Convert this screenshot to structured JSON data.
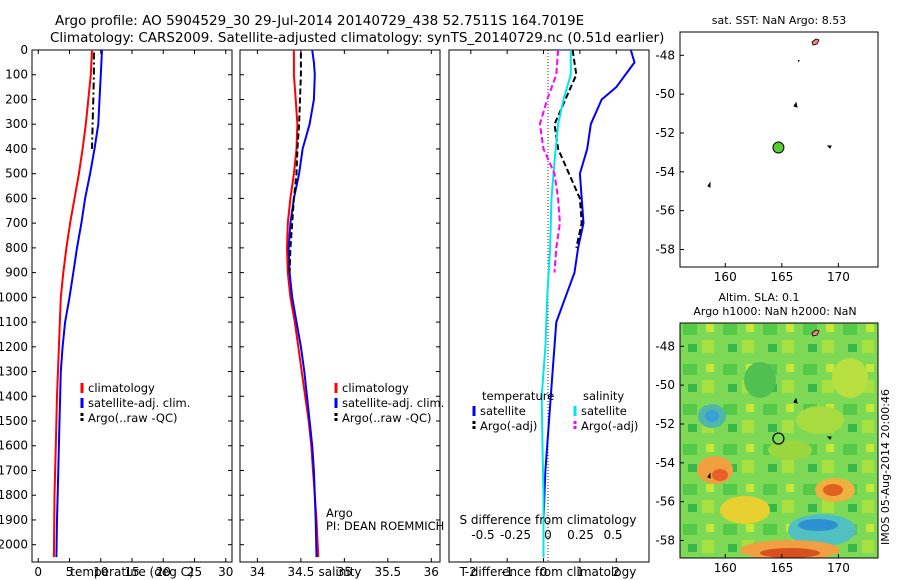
{
  "title_line1": "Argo profile: AO 5904529_30 29-Jul-2014 20140729_438 52.7511S 164.7019E",
  "title_line2": "Climatology: CARS2009. Satellite-adjusted climatology: synTS_20140729.nc (0.51d earlier)",
  "colors": {
    "climatology": "#ff0000",
    "satellite": "#0000ff",
    "argo": "#000000",
    "sat_temp": "#00e5ee",
    "argo_salt": "#ff00ff",
    "map_dot": "#55cc33"
  },
  "chart_data": [
    {
      "type": "line",
      "name": "temperature",
      "xlabel": "temperature (deg C)",
      "xlim": [
        -1,
        31
      ],
      "ylim": [
        2070,
        0
      ],
      "xticks": [
        "0",
        "5",
        "10",
        "15",
        "20",
        "25",
        "30"
      ],
      "xtick_values": [
        0,
        5,
        10,
        15,
        20,
        25,
        30
      ],
      "yticks": [
        "0",
        "100",
        "200",
        "300",
        "400",
        "500",
        "600",
        "700",
        "800",
        "900",
        "1000",
        "1100",
        "1200",
        "1300",
        "1400",
        "1500",
        "1600",
        "1700",
        "1800",
        "1900",
        "2000"
      ],
      "ytick_values": [
        0,
        100,
        200,
        300,
        400,
        500,
        600,
        700,
        800,
        900,
        1000,
        1100,
        1200,
        1300,
        1400,
        1500,
        1600,
        1700,
        1800,
        1900,
        2000
      ],
      "legend": [
        "climatology",
        "satellite-adj. clim.",
        "Argo(..raw -QC)"
      ],
      "series": [
        {
          "name": "climatology",
          "color": "#ff0000",
          "style": "solid",
          "points": [
            [
              8.6,
              0
            ],
            [
              8.4,
              100
            ],
            [
              8.0,
              200
            ],
            [
              7.6,
              300
            ],
            [
              7.1,
              400
            ],
            [
              6.5,
              500
            ],
            [
              5.8,
              600
            ],
            [
              5.1,
              700
            ],
            [
              4.5,
              800
            ],
            [
              4.0,
              900
            ],
            [
              3.6,
              1000
            ],
            [
              3.3,
              1200
            ],
            [
              3.0,
              1400
            ],
            [
              2.8,
              1600
            ],
            [
              2.6,
              1800
            ],
            [
              2.5,
              2050
            ]
          ]
        },
        {
          "name": "satellite-adj. clim.",
          "color": "#0000ff",
          "style": "solid",
          "points": [
            [
              10.2,
              0
            ],
            [
              10.0,
              100
            ],
            [
              9.8,
              200
            ],
            [
              9.6,
              300
            ],
            [
              9.0,
              400
            ],
            [
              8.3,
              500
            ],
            [
              7.5,
              600
            ],
            [
              6.9,
              700
            ],
            [
              6.2,
              800
            ],
            [
              5.6,
              900
            ],
            [
              5.0,
              1000
            ],
            [
              4.3,
              1100
            ],
            [
              3.9,
              1200
            ],
            [
              3.6,
              1300
            ],
            [
              3.4,
              1500
            ],
            [
              3.2,
              1700
            ],
            [
              3.0,
              1900
            ],
            [
              2.9,
              2050
            ]
          ]
        },
        {
          "name": "Argo(..raw -QC)",
          "color": "#000000",
          "style": "dashdot",
          "points": [
            [
              8.9,
              10
            ],
            [
              8.9,
              100
            ],
            [
              8.8,
              200
            ],
            [
              8.7,
              300
            ],
            [
              8.6,
              400
            ]
          ]
        }
      ]
    },
    {
      "type": "line",
      "name": "salinity",
      "xlabel": "salinity",
      "xlim": [
        33.8,
        36.1
      ],
      "ylim": [
        2070,
        0
      ],
      "xticks": [
        "34",
        "34.5",
        "35",
        "35.5",
        "36"
      ],
      "xtick_values": [
        34,
        34.5,
        35,
        35.5,
        36
      ],
      "legend": [
        "climatology",
        "satellite-adj. clim.",
        "Argo(..raw -QC)"
      ],
      "annotation": [
        "Argo",
        "PI: DEAN ROEMMICH"
      ],
      "series": [
        {
          "name": "climatology",
          "color": "#ff0000",
          "style": "solid",
          "points": [
            [
              34.42,
              0
            ],
            [
              34.42,
              100
            ],
            [
              34.44,
              200
            ],
            [
              34.46,
              300
            ],
            [
              34.45,
              400
            ],
            [
              34.42,
              500
            ],
            [
              34.38,
              600
            ],
            [
              34.35,
              700
            ],
            [
              34.34,
              800
            ],
            [
              34.35,
              900
            ],
            [
              34.38,
              1000
            ],
            [
              34.43,
              1100
            ],
            [
              34.47,
              1200
            ],
            [
              34.51,
              1300
            ],
            [
              34.55,
              1400
            ],
            [
              34.59,
              1500
            ],
            [
              34.62,
              1600
            ],
            [
              34.64,
              1700
            ],
            [
              34.66,
              1800
            ],
            [
              34.68,
              1900
            ],
            [
              34.7,
              2050
            ]
          ]
        },
        {
          "name": "satellite-adj. clim.",
          "color": "#0000ff",
          "style": "solid",
          "points": [
            [
              34.63,
              0
            ],
            [
              34.65,
              50
            ],
            [
              34.66,
              100
            ],
            [
              34.65,
              200
            ],
            [
              34.6,
              300
            ],
            [
              34.52,
              400
            ],
            [
              34.48,
              500
            ],
            [
              34.42,
              600
            ],
            [
              34.38,
              700
            ],
            [
              34.36,
              800
            ],
            [
              34.37,
              900
            ],
            [
              34.4,
              1000
            ],
            [
              34.45,
              1100
            ],
            [
              34.5,
              1200
            ],
            [
              34.54,
              1300
            ],
            [
              34.57,
              1400
            ],
            [
              34.6,
              1500
            ],
            [
              34.63,
              1600
            ],
            [
              34.65,
              1700
            ],
            [
              34.66,
              1800
            ],
            [
              34.67,
              1900
            ],
            [
              34.68,
              2050
            ]
          ]
        },
        {
          "name": "Argo(..raw -QC)",
          "color": "#000000",
          "style": "dashed",
          "points": [
            [
              34.5,
              10
            ],
            [
              34.5,
              100
            ],
            [
              34.49,
              200
            ],
            [
              34.48,
              300
            ],
            [
              34.46,
              400
            ],
            [
              34.45,
              500
            ],
            [
              34.42,
              600
            ],
            [
              34.4,
              700
            ],
            [
              34.38,
              800
            ],
            [
              34.37,
              900
            ]
          ]
        }
      ]
    },
    {
      "type": "line",
      "name": "difference from climatology",
      "xlabel": "T difference from climatology",
      "x2label": "S difference from climatology",
      "xlim": [
        -2.6,
        2.9
      ],
      "ylim": [
        2070,
        0
      ],
      "xticks": [
        "-2",
        "-1",
        "0",
        "1",
        "2"
      ],
      "xtick_values": [
        -2,
        -1,
        0,
        1,
        2
      ],
      "x2ticks": [
        "-0.5",
        "-0.25",
        "0",
        "0.25",
        "0.5"
      ],
      "x2tick_values": [
        -0.5,
        -0.25,
        0,
        0.25,
        0.5
      ],
      "legend_headers": [
        "temperature",
        "salinity"
      ],
      "legend": [
        "satellite",
        "Argo(-adj)",
        "satellite",
        "Argo(-adj)"
      ],
      "series": [
        {
          "name": "satellite",
          "color": "#0000ff",
          "style": "solid",
          "points": [
            [
              2.4,
              0
            ],
            [
              2.5,
              50
            ],
            [
              2.0,
              150
            ],
            [
              1.6,
              200
            ],
            [
              1.3,
              300
            ],
            [
              1.2,
              400
            ],
            [
              1.0,
              500
            ],
            [
              1.1,
              700
            ],
            [
              0.95,
              800
            ],
            [
              0.85,
              900
            ],
            [
              0.6,
              1000
            ],
            [
              0.35,
              1100
            ],
            [
              0.25,
              1300
            ],
            [
              0.15,
              1500
            ],
            [
              0.05,
              1700
            ],
            [
              0.0,
              1900
            ],
            [
              0.0,
              2050
            ]
          ]
        },
        {
          "name": "Argo(-adj)",
          "color": "#000000",
          "style": "dashed",
          "points": [
            [
              0.8,
              0
            ],
            [
              0.9,
              100
            ],
            [
              0.6,
              200
            ],
            [
              0.3,
              300
            ],
            [
              0.4,
              400
            ],
            [
              0.7,
              500
            ],
            [
              1.0,
              600
            ],
            [
              1.05,
              700
            ],
            [
              0.9,
              800
            ]
          ]
        },
        {
          "name": "satellite",
          "color": "#00e5ee",
          "style": "solid",
          "points": [
            [
              0.75,
              0
            ],
            [
              0.75,
              100
            ],
            [
              0.55,
              200
            ],
            [
              0.4,
              300
            ],
            [
              0.3,
              450
            ],
            [
              0.22,
              600
            ],
            [
              0.18,
              800
            ],
            [
              0.1,
              1000
            ],
            [
              0.05,
              1200
            ],
            [
              -0.05,
              1400
            ],
            [
              -0.03,
              1600
            ],
            [
              0.0,
              1800
            ],
            [
              0.0,
              2050
            ]
          ]
        },
        {
          "name": "Argo(-adj)",
          "color": "#ff00ff",
          "style": "dashed",
          "points": [
            [
              0.4,
              0
            ],
            [
              0.35,
              100
            ],
            [
              0.1,
              200
            ],
            [
              -0.1,
              300
            ],
            [
              0.0,
              400
            ],
            [
              0.3,
              500
            ],
            [
              0.4,
              600
            ],
            [
              0.45,
              700
            ],
            [
              0.35,
              800
            ],
            [
              0.3,
              900
            ]
          ]
        }
      ]
    },
    {
      "type": "scatter",
      "name": "sat SST map",
      "title": "sat. SST: NaN Argo: 8.53",
      "xlim": [
        156,
        173.5
      ],
      "ylim": [
        -58.9,
        -46.8
      ],
      "xticks": [
        "160",
        "165",
        "170"
      ],
      "xtick_values": [
        160,
        165,
        170
      ],
      "yticks": [
        "-48",
        "-50",
        "-52",
        "-54",
        "-56",
        "-58"
      ],
      "ytick_values": [
        -48,
        -50,
        -52,
        -54,
        -56,
        -58
      ],
      "points": [
        {
          "lon": 164.7,
          "lat": -52.75
        }
      ]
    },
    {
      "type": "heatmap",
      "name": "altimetry map",
      "title_line1": "Altim. SLA: 0.1",
      "title_line2": "Argo h1000: NaN h2000: NaN",
      "xlim": [
        156,
        173.5
      ],
      "ylim": [
        -58.9,
        -46.8
      ],
      "xticks": [
        "160",
        "165",
        "170"
      ],
      "xtick_values": [
        160,
        165,
        170
      ],
      "yticks": [
        "-48",
        "-50",
        "-52",
        "-54",
        "-56",
        "-58"
      ],
      "ytick_values": [
        -48,
        -50,
        -52,
        -54,
        -56,
        -58
      ],
      "points": [
        {
          "lon": 164.7,
          "lat": -52.75
        }
      ]
    }
  ],
  "footer_label": "IMOS 05-Aug-2014 20:00:46"
}
